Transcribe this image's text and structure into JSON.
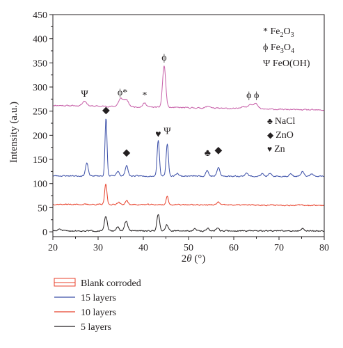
{
  "chart_data": {
    "type": "line",
    "xlabel": {
      "theta": "θ",
      "prefix": "2",
      "unit": " (°)"
    },
    "ylabel": "Intensity (a.u.)",
    "xlim": [
      20,
      80
    ],
    "ylim": [
      -10,
      450
    ],
    "x_ticks": [
      20,
      30,
      40,
      50,
      60,
      70,
      80
    ],
    "y_ticks": [
      0,
      50,
      100,
      150,
      200,
      250,
      300,
      350,
      400,
      450
    ],
    "legend_position": "bottom-left",
    "series": [
      {
        "name": "Blank corroded",
        "color": "#c75fa8",
        "legend_color": "#e8412b",
        "legend_style": "box",
        "baseline": 262,
        "baseline_end": 252,
        "noise": 2.2,
        "seed": 11,
        "peaks": [
          [
            27.0,
            10,
            0.5
          ],
          [
            35.0,
            16,
            0.5
          ],
          [
            36.2,
            14,
            0.5
          ],
          [
            40.3,
            8,
            0.4
          ],
          [
            44.6,
            86,
            0.35
          ],
          [
            54.4,
            4,
            0.5
          ],
          [
            62.0,
            5,
            0.5
          ],
          [
            63.6,
            9,
            0.5
          ],
          [
            64.8,
            11,
            0.5
          ]
        ]
      },
      {
        "name": "15 layers",
        "color": "#3b4fa8",
        "legend_color": "#3b4fa8",
        "legend_style": "line",
        "baseline": 116,
        "baseline_end": 115,
        "noise": 2.2,
        "seed": 23,
        "peaks": [
          [
            27.5,
            26,
            0.3
          ],
          [
            31.75,
            120,
            0.22
          ],
          [
            34.4,
            10,
            0.3
          ],
          [
            36.3,
            22,
            0.3
          ],
          [
            43.3,
            75,
            0.25
          ],
          [
            45.3,
            67,
            0.25
          ],
          [
            47.5,
            6,
            0.3
          ],
          [
            54.1,
            12,
            0.3
          ],
          [
            56.6,
            18,
            0.3
          ],
          [
            62.8,
            7,
            0.3
          ],
          [
            66.3,
            5,
            0.3
          ],
          [
            68.0,
            5,
            0.3
          ],
          [
            72.6,
            5,
            0.3
          ],
          [
            75.2,
            10,
            0.3
          ],
          [
            77.2,
            5,
            0.3
          ]
        ]
      },
      {
        "name": "10 layers",
        "color": "#e8412b",
        "legend_color": "#e8412b",
        "legend_style": "line",
        "baseline": 57,
        "baseline_end": 55,
        "noise": 2.2,
        "seed": 37,
        "peaks": [
          [
            31.7,
            42,
            0.25
          ],
          [
            34.5,
            5,
            0.3
          ],
          [
            36.3,
            8,
            0.3
          ],
          [
            45.3,
            17,
            0.25
          ],
          [
            56.6,
            6,
            0.3
          ]
        ]
      },
      {
        "name": "5 layers",
        "color": "#231f20",
        "legend_color": "#231f20",
        "legend_style": "line",
        "baseline": 2,
        "baseline_end": 2,
        "noise": 2.4,
        "seed": 51,
        "peaks": [
          [
            21.5,
            4,
            0.3
          ],
          [
            31.7,
            30,
            0.3
          ],
          [
            34.3,
            8,
            0.3
          ],
          [
            36.2,
            20,
            0.35
          ],
          [
            43.3,
            35,
            0.3
          ],
          [
            45.2,
            13,
            0.3
          ],
          [
            51.4,
            4,
            0.3
          ],
          [
            54.2,
            5,
            0.3
          ],
          [
            56.4,
            7,
            0.3
          ],
          [
            75.2,
            5,
            0.3
          ]
        ]
      }
    ],
    "peak_markers": [
      {
        "symbol": "Ψ",
        "x": 27.0,
        "y": 280,
        "color": "#231f20"
      },
      {
        "symbol": "ϕ*",
        "x": 35.4,
        "y": 283,
        "color": "#231f20"
      },
      {
        "symbol": "*",
        "x": 40.3,
        "y": 277,
        "color": "#231f20"
      },
      {
        "symbol": "ϕ",
        "x": 44.6,
        "y": 355,
        "color": "#231f20"
      },
      {
        "symbol": "ϕ ϕ",
        "x": 64.2,
        "y": 277,
        "color": "#231f20"
      },
      {
        "symbol": "◆",
        "x": 31.75,
        "y": 246,
        "color": "#231f20"
      },
      {
        "symbol": "◆",
        "x": 36.3,
        "y": 158,
        "color": "#231f20"
      },
      {
        "symbol": "♥",
        "x": 43.3,
        "y": 196,
        "color": "#231f20"
      },
      {
        "symbol": "Ψ",
        "x": 45.3,
        "y": 203,
        "color": "#231f20"
      },
      {
        "symbol": "♣",
        "x": 54.2,
        "y": 157,
        "color": "#231f20"
      },
      {
        "symbol": "◆",
        "x": 56.6,
        "y": 163,
        "color": "#231f20"
      }
    ],
    "phase_legend_top": [
      {
        "symbol": "*",
        "text": "Fe",
        "sub1": "2",
        "mid": "O",
        "sub2": "3"
      },
      {
        "symbol": "ϕ",
        "text": "Fe",
        "sub1": "3",
        "mid": "O",
        "sub2": "4"
      },
      {
        "symbol": "Ψ",
        "text": "FeO(OH)",
        "sub1": "",
        "mid": "",
        "sub2": ""
      }
    ],
    "phase_legend_mid": [
      {
        "symbol": "♣",
        "text": "NaCl"
      },
      {
        "symbol": "◆",
        "text": "ZnO"
      },
      {
        "symbol": "♥",
        "text": "Zn"
      }
    ]
  }
}
